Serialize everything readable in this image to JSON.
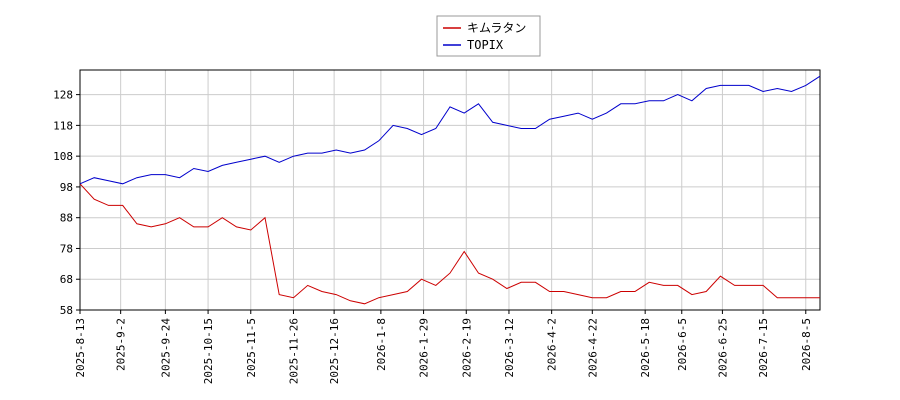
{
  "chart_data": {
    "type": "line",
    "x": [
      "2025-8-13",
      "2025-8-20",
      "2025-8-27",
      "2025-9-3",
      "2025-9-10",
      "2025-9-17",
      "2025-9-24",
      "2025-10-1",
      "2025-10-8",
      "2025-10-15",
      "2025-10-22",
      "2025-10-29",
      "2025-11-5",
      "2025-11-12",
      "2025-11-19",
      "2025-11-26",
      "2025-12-3",
      "2025-12-10",
      "2025-12-17",
      "2025-12-24",
      "2025-12-31",
      "2026-1-7",
      "2026-1-14",
      "2026-1-21",
      "2026-1-28",
      "2026-2-4",
      "2026-2-11",
      "2026-2-18",
      "2026-2-25",
      "2026-3-4",
      "2026-3-11",
      "2026-3-18",
      "2026-3-25",
      "2026-4-1",
      "2026-4-8",
      "2026-4-15",
      "2026-4-22",
      "2026-4-29",
      "2026-5-6",
      "2026-5-13",
      "2026-5-20",
      "2026-5-27",
      "2026-6-3",
      "2026-6-10",
      "2026-6-17",
      "2026-6-24",
      "2026-7-1",
      "2026-7-8",
      "2026-7-15",
      "2026-7-22",
      "2026-7-29",
      "2026-8-5",
      "2026-8-12"
    ],
    "series": [
      {
        "name": "キムラタン",
        "color": "#cc0000",
        "values": [
          99,
          94,
          92,
          92,
          86,
          85,
          86,
          88,
          85,
          85,
          88,
          85,
          84,
          88,
          63,
          62,
          66,
          64,
          63,
          61,
          60,
          62,
          63,
          64,
          68,
          66,
          70,
          77,
          70,
          68,
          65,
          67,
          67,
          64,
          64,
          63,
          62,
          62,
          64,
          64,
          67,
          66,
          66,
          63,
          64,
          69,
          66,
          66,
          66,
          62,
          62,
          62,
          62
        ]
      },
      {
        "name": "TOPIX",
        "color": "#0000cc",
        "values": [
          99,
          101,
          100,
          99,
          101,
          102,
          102,
          101,
          104,
          103,
          105,
          106,
          107,
          108,
          106,
          108,
          109,
          109,
          110,
          109,
          110,
          113,
          118,
          117,
          115,
          117,
          124,
          122,
          125,
          119,
          118,
          117,
          117,
          120,
          121,
          122,
          120,
          122,
          125,
          125,
          126,
          126,
          128,
          126,
          130,
          131,
          131,
          131,
          129,
          130,
          129,
          131,
          134
        ]
      }
    ],
    "xlim": [
      "2025-8-13",
      "2026-8-12"
    ],
    "xticks": [
      "2025-8-13",
      "2025-9-2",
      "2025-9-24",
      "2025-10-15",
      "2025-11-5",
      "2025-11-26",
      "2025-12-16",
      "2026-1-8",
      "2026-1-29",
      "2026-2-19",
      "2026-3-12",
      "2026-4-2",
      "2026-4-22",
      "2026-5-18",
      "2026-6-5",
      "2026-6-25",
      "2026-7-15",
      "2026-8-5"
    ],
    "ylim": [
      58,
      136
    ],
    "yticks": [
      58,
      68,
      78,
      88,
      98,
      108,
      118,
      128
    ],
    "grid": true,
    "legend": "top"
  }
}
